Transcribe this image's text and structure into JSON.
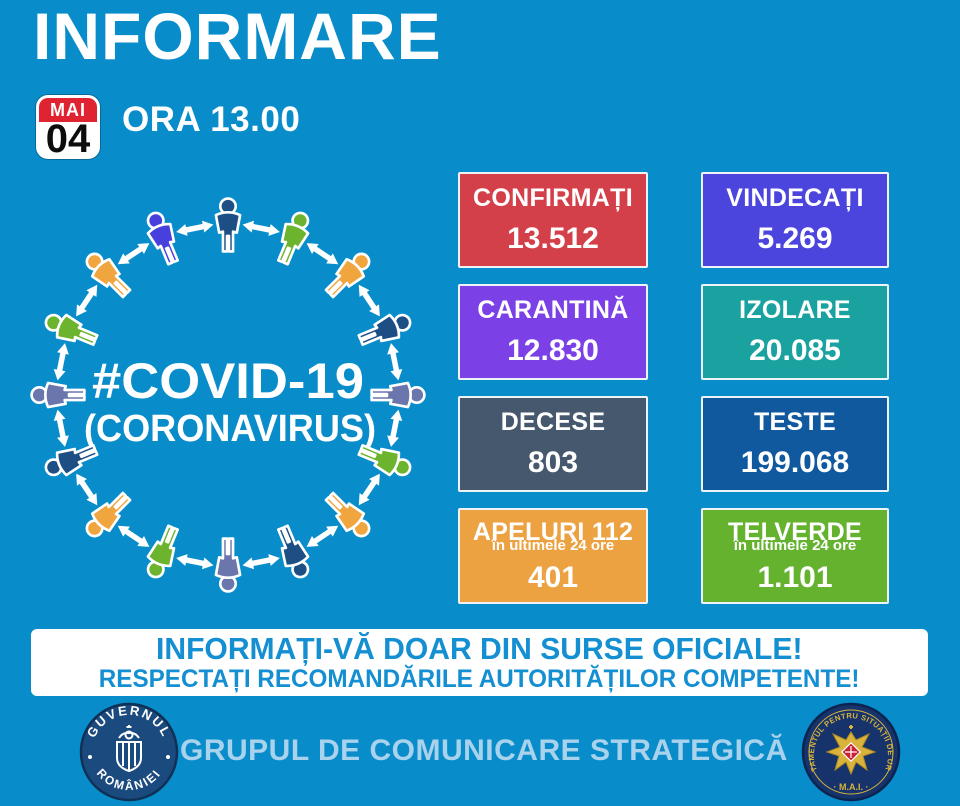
{
  "page": {
    "bg": "#088dca"
  },
  "header": {
    "title": "INFORMARE",
    "date_month": "MAI",
    "date_day": "04",
    "time_label": "ORA 13.00"
  },
  "figure": {
    "hashtag": "#COVID-19",
    "subtitle": "(CORONAVIRUS)",
    "arrow_color": "#ffffff",
    "person_colors": [
      "#1d4e84",
      "#6cb42d",
      "#f0a53e",
      "#1d4e84",
      "#6b76ad",
      "#6cb42d",
      "#f0a53e",
      "#1d4e84",
      "#6b76ad",
      "#6cb42d",
      "#f0a53e",
      "#1d4e84",
      "#6b76ad",
      "#6cb42d",
      "#f0a53e",
      "#4740dd"
    ]
  },
  "stats": [
    {
      "label": "CONFIRMAȚI",
      "sub": "",
      "value": "13.512",
      "color": "#d4404a"
    },
    {
      "label": "VINDECAȚI",
      "sub": "",
      "value": "5.269",
      "color": "#4b45dd"
    },
    {
      "label": "CARANTINĂ",
      "sub": "",
      "value": "12.830",
      "color": "#7b41e6"
    },
    {
      "label": "IZOLARE",
      "sub": "",
      "value": "20.085",
      "color": "#19a2a0"
    },
    {
      "label": "DECESE",
      "sub": "",
      "value": "803",
      "color": "#46586d"
    },
    {
      "label": "TESTE",
      "sub": "",
      "value": "199.068",
      "color": "#10599e"
    },
    {
      "label": "APELURI 112",
      "sub": "în ultimele 24 ore",
      "value": "401",
      "color": "#eda242"
    },
    {
      "label": "TELVERDE",
      "sub": "în ultimele 24 ore",
      "value": "1.101",
      "color": "#65b22f"
    }
  ],
  "banner": {
    "line1": "INFORMAȚI-VĂ DOAR DIN SURSE OFICIALE!",
    "line2": "RESPECTAȚI RECOMANDĂRILE AUTORITĂȚILOR COMPETENTE!",
    "text_color": "#148fd2"
  },
  "footer": {
    "center_text": "GRUPUL DE COMUNICARE STRATEGICĂ",
    "center_color": "#a9d2ec",
    "left_seal": {
      "top_text": "GUVERNUL",
      "bottom_text": "ROMÂNIEI"
    },
    "right_seal": {
      "around_text": "DEPARTAMENTUL PENTRU SITUAȚII DE URGENȚĂ",
      "bottom_text": "· M.A.I. ·"
    }
  }
}
